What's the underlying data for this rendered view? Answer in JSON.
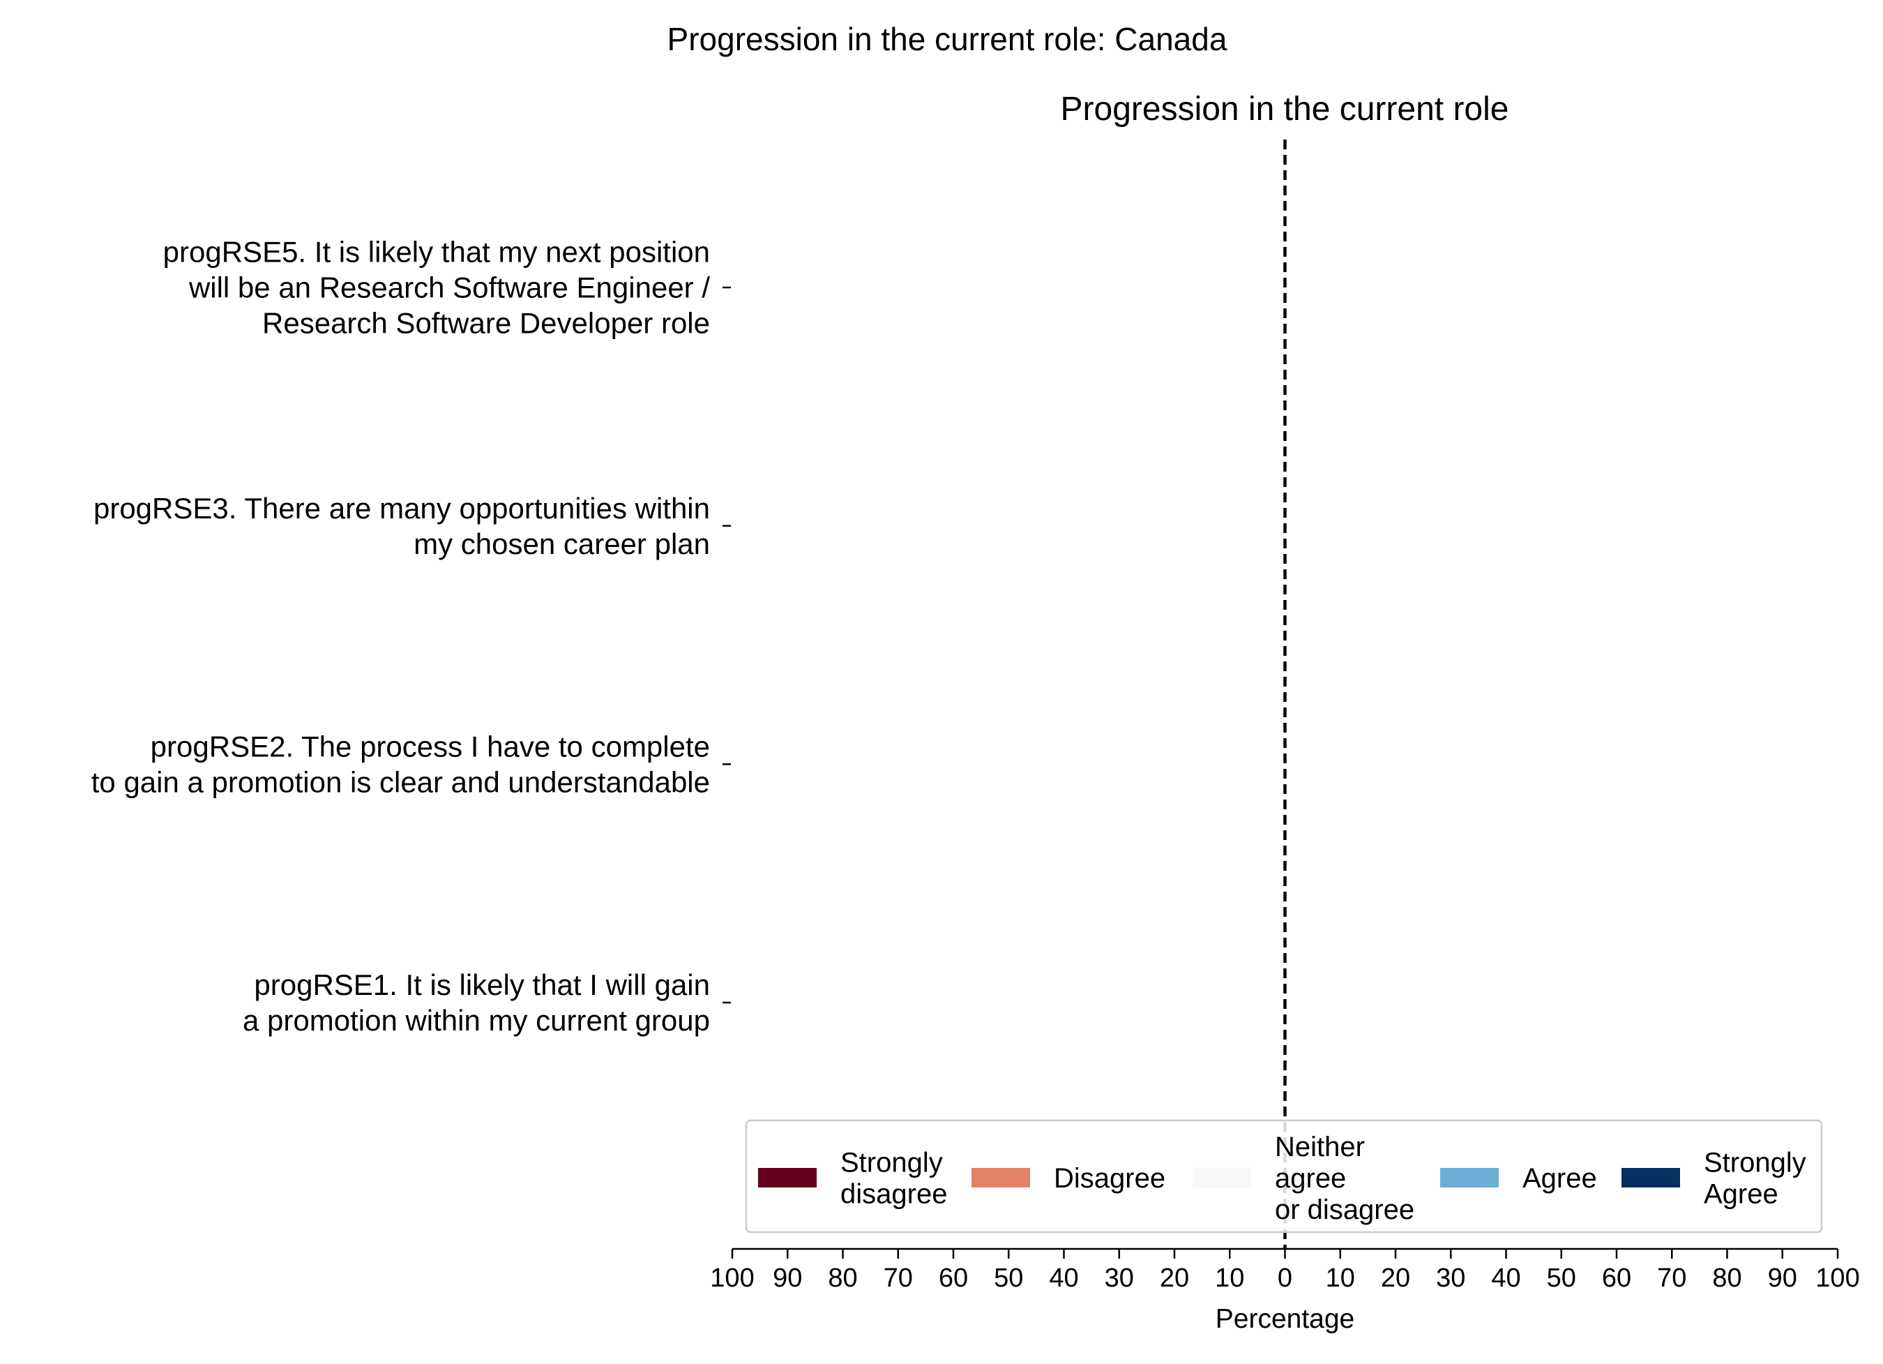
{
  "chart_data": {
    "type": "bar",
    "figure_title": "Progression in the current role: Canada",
    "title": "Progression in the current role",
    "xlabel": "Percentage",
    "xlim": [
      -100,
      100
    ],
    "xticks": [
      "100",
      "90",
      "80",
      "70",
      "60",
      "50",
      "40",
      "30",
      "20",
      "10",
      "0",
      "10",
      "20",
      "30",
      "40",
      "50",
      "60",
      "70",
      "80",
      "90",
      "100"
    ],
    "grid": false,
    "legend_position": "bottom",
    "categories": [
      "progRSE5. It is likely that my next position\nwill be an Research Software Engineer /\nResearch Software Developer role",
      "progRSE3. There are many opportunities within\nmy chosen career plan",
      "progRSE2. The process I have to complete\nto gain a promotion is clear and understandable",
      "progRSE1. It is likely that I will gain\na promotion within my current group"
    ],
    "series": [
      {
        "name": "Strongly\ndisagree",
        "color": "#67001f",
        "values": [
          0,
          0,
          0,
          0
        ]
      },
      {
        "name": "Disagree",
        "color": "#e48066",
        "values": [
          0,
          0,
          0,
          0
        ]
      },
      {
        "name": "Neither\nagree\nor disagree",
        "color": "#f7f7f7",
        "values": [
          0,
          0,
          0,
          0
        ]
      },
      {
        "name": "Agree",
        "color": "#6aaed6",
        "values": [
          0,
          0,
          0,
          0
        ]
      },
      {
        "name": "Strongly\nAgree",
        "color": "#053061",
        "values": [
          0,
          0,
          0,
          0
        ]
      }
    ]
  }
}
